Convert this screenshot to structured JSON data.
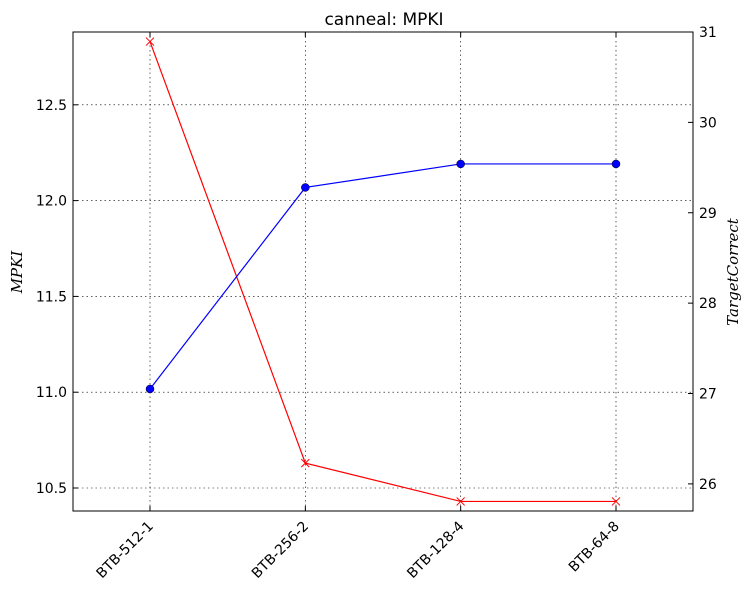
{
  "chart_data": {
    "type": "line",
    "title": "canneal: MPKI",
    "categories": [
      "BTB-512-1",
      "BTB-256-2",
      "BTB-128-4",
      "BTB-64-8"
    ],
    "ylabel_left": "MPKI",
    "ylabel_right": "TargetCorrect",
    "ylim_left": [
      10.38,
      12.88
    ],
    "ylim_right": [
      25.7,
      31.0
    ],
    "yticks_left": [
      "10.5",
      "11.0",
      "11.5",
      "12.0",
      "12.5"
    ],
    "yticks_right": [
      "26",
      "27",
      "28",
      "29",
      "30",
      "31"
    ],
    "grid": true,
    "series": [
      {
        "axis": "left",
        "color": "#ff0000",
        "marker": "x",
        "values": [
          12.83,
          10.63,
          10.43,
          10.43
        ]
      },
      {
        "axis": "right",
        "color": "#0000ff",
        "marker": "o",
        "values": [
          27.05,
          29.28,
          29.54,
          29.54
        ]
      }
    ]
  }
}
